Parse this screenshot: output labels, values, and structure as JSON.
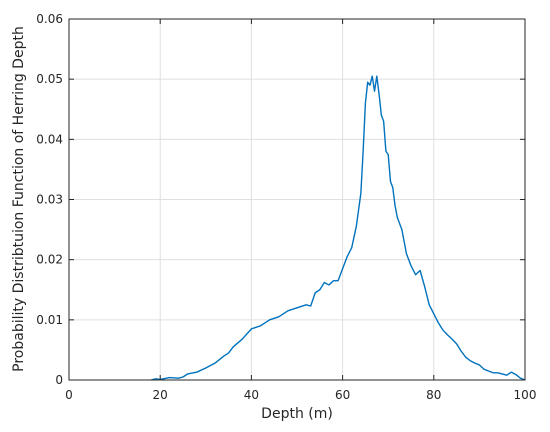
{
  "chart_data": {
    "type": "line",
    "xlabel": "Depth (m)",
    "ylabel": "Probability Distribtuion Function of Herring Depth",
    "xlim": [
      0,
      100
    ],
    "ylim": [
      0,
      0.06
    ],
    "x_ticks": [
      "0",
      "20",
      "40",
      "60",
      "80",
      "100"
    ],
    "y_ticks": [
      "0",
      "0.01",
      "0.02",
      "0.03",
      "0.04",
      "0.05",
      "0.06"
    ],
    "grid": true,
    "colors": {
      "line": "#0072BD",
      "grid": "#dfdfdf",
      "axes": "#262626"
    },
    "series": [
      {
        "x": [
          18,
          19,
          20,
          22,
          24,
          25,
          26,
          28,
          30,
          32,
          34,
          35,
          36,
          38,
          40,
          42,
          44,
          46,
          48,
          50,
          52,
          53,
          54,
          55,
          56,
          57,
          58,
          59,
          60,
          61,
          62,
          63,
          64,
          64.5,
          65,
          65.5,
          66,
          66.5,
          67,
          67.5,
          68,
          68.5,
          69,
          69.5,
          70,
          70.5,
          71,
          71.5,
          72,
          73,
          74,
          75,
          76,
          77,
          78,
          79,
          80,
          81,
          82,
          83,
          84,
          85,
          86,
          87,
          88,
          89,
          90,
          91,
          92,
          93,
          94,
          95,
          96,
          97,
          98,
          99,
          100
        ],
        "y": [
          0,
          0.0002,
          0.0001,
          0.0004,
          0.0003,
          0.0005,
          0.001,
          0.0013,
          0.002,
          0.0028,
          0.004,
          0.0045,
          0.0055,
          0.0068,
          0.0085,
          0.009,
          0.01,
          0.0105,
          0.0115,
          0.012,
          0.0125,
          0.0123,
          0.0145,
          0.015,
          0.0162,
          0.0158,
          0.0165,
          0.0165,
          0.0185,
          0.0205,
          0.022,
          0.0255,
          0.031,
          0.038,
          0.046,
          0.0495,
          0.049,
          0.0505,
          0.048,
          0.0505,
          0.0475,
          0.044,
          0.043,
          0.038,
          0.0375,
          0.033,
          0.032,
          0.029,
          0.027,
          0.025,
          0.021,
          0.019,
          0.0175,
          0.0182,
          0.0155,
          0.0125,
          0.011,
          0.0095,
          0.0083,
          0.0075,
          0.0068,
          0.006,
          0.0048,
          0.0038,
          0.0032,
          0.0028,
          0.0025,
          0.0018,
          0.0015,
          0.0012,
          0.0012,
          0.001,
          0.0008,
          0.0013,
          0.0009,
          0.0003,
          0
        ]
      }
    ]
  }
}
